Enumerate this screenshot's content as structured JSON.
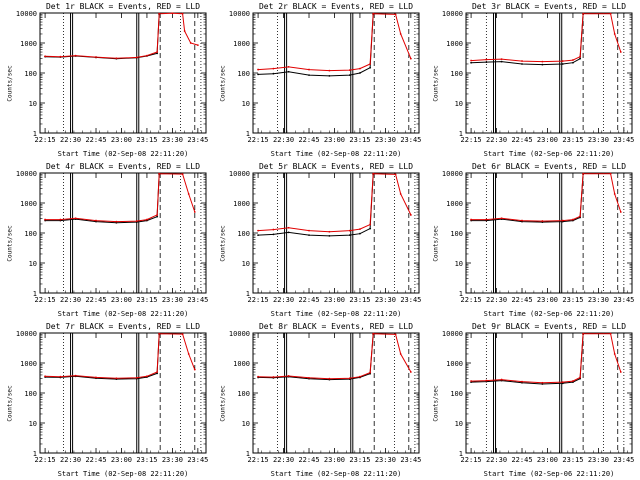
{
  "chart_data": [
    {
      "type": "line",
      "title": "Det 1r BLACK = Events, RED = LLD",
      "xlabel": "Start Time (02-Sep-08 22:11:20)",
      "ylabel": "Counts/sec",
      "x_tick_labels": [
        "22:15",
        "22:30",
        "22:45",
        "23:00",
        "23:15",
        "23:30",
        "23:45"
      ],
      "y_tick_labels": [
        "1",
        "10",
        "100",
        "1000",
        "10000"
      ],
      "y_scale": "log",
      "ylim": [
        1,
        10000
      ],
      "series": [
        {
          "color": "#000000",
          "points": [
            [
              22.25,
              350
            ],
            [
              22.4,
              340
            ],
            [
              22.55,
              370
            ],
            [
              22.75,
              330
            ],
            [
              22.95,
              300
            ],
            [
              23.15,
              320
            ],
            [
              23.25,
              370
            ],
            [
              23.35,
              450
            ],
            [
              23.37,
              9000
            ]
          ]
        },
        {
          "color": "#e00000",
          "points": [
            [
              22.25,
              360
            ],
            [
              22.4,
              350
            ],
            [
              22.55,
              380
            ],
            [
              22.75,
              340
            ],
            [
              22.95,
              310
            ],
            [
              23.15,
              330
            ],
            [
              23.25,
              380
            ],
            [
              23.35,
              500
            ],
            [
              23.37,
              9500
            ],
            [
              23.5,
              9800
            ],
            [
              23.6,
              9500
            ],
            [
              23.62,
              2500
            ],
            [
              23.68,
              1000
            ],
            [
              23.75,
              850
            ]
          ]
        }
      ]
    },
    {
      "type": "line",
      "title": "Det 2r BLACK = Events, RED = LLD",
      "xlabel": "Start Time (02-Sep-08 22:11:20)",
      "ylabel": "Counts/sec",
      "x_tick_labels": [
        "22:15",
        "22:30",
        "22:45",
        "23:00",
        "23:15",
        "23:30",
        "23:45"
      ],
      "y_tick_labels": [
        "1",
        "10",
        "100",
        "1000",
        "10000"
      ],
      "y_scale": "log",
      "ylim": [
        1,
        10000
      ],
      "series": [
        {
          "color": "#000000",
          "points": [
            [
              22.25,
              90
            ],
            [
              22.4,
              95
            ],
            [
              22.55,
              110
            ],
            [
              22.75,
              85
            ],
            [
              22.95,
              80
            ],
            [
              23.15,
              85
            ],
            [
              23.25,
              100
            ],
            [
              23.35,
              150
            ],
            [
              23.38,
              9000
            ]
          ]
        },
        {
          "color": "#e00000",
          "points": [
            [
              22.25,
              130
            ],
            [
              22.4,
              140
            ],
            [
              22.55,
              160
            ],
            [
              22.75,
              130
            ],
            [
              22.95,
              120
            ],
            [
              23.15,
              125
            ],
            [
              23.25,
              140
            ],
            [
              23.35,
              200
            ],
            [
              23.38,
              9500
            ],
            [
              23.6,
              9000
            ],
            [
              23.65,
              2000
            ],
            [
              23.75,
              300
            ]
          ]
        }
      ]
    },
    {
      "type": "line",
      "title": "Det 3r BLACK = Events, RED = LLD",
      "xlabel": "Start Time (02-Sep-06 22:11:20)",
      "ylabel": "Counts/sec",
      "x_tick_labels": [
        "22:15",
        "22:30",
        "22:45",
        "23:00",
        "23:15",
        "23:30",
        "23:45"
      ],
      "y_tick_labels": [
        "1",
        "10",
        "100",
        "1000",
        "10000"
      ],
      "y_scale": "log",
      "ylim": [
        1,
        10000
      ],
      "series": [
        {
          "color": "#000000",
          "points": [
            [
              22.25,
              220
            ],
            [
              22.4,
              230
            ],
            [
              22.55,
              240
            ],
            [
              22.75,
              200
            ],
            [
              22.95,
              190
            ],
            [
              23.15,
              200
            ],
            [
              23.25,
              220
            ],
            [
              23.32,
              300
            ],
            [
              23.35,
              9000
            ]
          ]
        },
        {
          "color": "#e00000",
          "points": [
            [
              22.25,
              260
            ],
            [
              22.4,
              280
            ],
            [
              22.55,
              290
            ],
            [
              22.75,
              250
            ],
            [
              22.95,
              240
            ],
            [
              23.15,
              250
            ],
            [
              23.25,
              270
            ],
            [
              23.32,
              350
            ],
            [
              23.35,
              9500
            ],
            [
              23.62,
              9500
            ],
            [
              23.66,
              2000
            ],
            [
              23.72,
              500
            ]
          ]
        }
      ]
    },
    {
      "type": "line",
      "title": "Det 4r BLACK = Events, RED = LLD",
      "xlabel": "Start Time (02-Sep-08 22:11:20)",
      "ylabel": "Counts/sec",
      "x_tick_labels": [
        "22:15",
        "22:30",
        "22:45",
        "23:00",
        "23:15",
        "23:30",
        "23:45"
      ],
      "y_tick_labels": [
        "1",
        "10",
        "100",
        "1000",
        "10000"
      ],
      "y_scale": "log",
      "ylim": [
        1,
        10000
      ],
      "series": [
        {
          "color": "#000000",
          "points": [
            [
              22.25,
              260
            ],
            [
              22.4,
              260
            ],
            [
              22.55,
              290
            ],
            [
              22.75,
              240
            ],
            [
              22.95,
              220
            ],
            [
              23.15,
              230
            ],
            [
              23.25,
              260
            ],
            [
              23.35,
              350
            ],
            [
              23.37,
              9000
            ]
          ]
        },
        {
          "color": "#e00000",
          "points": [
            [
              22.25,
              280
            ],
            [
              22.4,
              280
            ],
            [
              22.55,
              310
            ],
            [
              22.75,
              260
            ],
            [
              22.95,
              240
            ],
            [
              23.15,
              250
            ],
            [
              23.25,
              280
            ],
            [
              23.35,
              400
            ],
            [
              23.37,
              9500
            ],
            [
              23.6,
              9200
            ],
            [
              23.66,
              2000
            ],
            [
              23.72,
              500
            ]
          ]
        }
      ]
    },
    {
      "type": "line",
      "title": "Det 5r BLACK = Events, RED = LLD",
      "xlabel": "Start Time (02-Sep-08 22:11:20)",
      "ylabel": "Counts/sec",
      "x_tick_labels": [
        "22:15",
        "22:30",
        "22:45",
        "23:00",
        "23:15",
        "23:30",
        "23:45"
      ],
      "y_tick_labels": [
        "1",
        "10",
        "100",
        "1000",
        "10000"
      ],
      "y_scale": "log",
      "ylim": [
        1,
        10000
      ],
      "series": [
        {
          "color": "#000000",
          "points": [
            [
              22.25,
              85
            ],
            [
              22.4,
              90
            ],
            [
              22.55,
              105
            ],
            [
              22.75,
              85
            ],
            [
              22.95,
              80
            ],
            [
              23.15,
              85
            ],
            [
              23.25,
              95
            ],
            [
              23.35,
              140
            ],
            [
              23.38,
              9000
            ]
          ]
        },
        {
          "color": "#e00000",
          "points": [
            [
              22.25,
              120
            ],
            [
              22.4,
              130
            ],
            [
              22.55,
              150
            ],
            [
              22.75,
              120
            ],
            [
              22.95,
              110
            ],
            [
              23.15,
              120
            ],
            [
              23.25,
              135
            ],
            [
              23.35,
              190
            ],
            [
              23.38,
              9500
            ],
            [
              23.6,
              9000
            ],
            [
              23.65,
              2000
            ],
            [
              23.75,
              400
            ]
          ]
        }
      ]
    },
    {
      "type": "line",
      "title": "Det 6r BLACK = Events, RED = LLD",
      "xlabel": "Start Time (02-Sep-06 22:11:20)",
      "ylabel": "Counts/sec",
      "x_tick_labels": [
        "22:15",
        "22:30",
        "22:45",
        "23:00",
        "23:15",
        "23:30",
        "23:45"
      ],
      "y_tick_labels": [
        "1",
        "10",
        "100",
        "1000",
        "10000"
      ],
      "y_scale": "log",
      "ylim": [
        1,
        10000
      ],
      "series": [
        {
          "color": "#000000",
          "points": [
            [
              22.25,
              260
            ],
            [
              22.4,
              260
            ],
            [
              22.55,
              290
            ],
            [
              22.75,
              240
            ],
            [
              22.95,
              230
            ],
            [
              23.15,
              240
            ],
            [
              23.25,
              260
            ],
            [
              23.32,
              330
            ],
            [
              23.35,
              9000
            ]
          ]
        },
        {
          "color": "#e00000",
          "points": [
            [
              22.25,
              280
            ],
            [
              22.4,
              280
            ],
            [
              22.55,
              310
            ],
            [
              22.75,
              260
            ],
            [
              22.95,
              250
            ],
            [
              23.15,
              260
            ],
            [
              23.25,
              280
            ],
            [
              23.32,
              360
            ],
            [
              23.35,
              9500
            ],
            [
              23.62,
              9500
            ],
            [
              23.66,
              2000
            ],
            [
              23.72,
              500
            ]
          ]
        }
      ]
    },
    {
      "type": "line",
      "title": "Det 7r BLACK = Events, RED = LLD",
      "xlabel": "Start Time (02-Sep-08 22:11:20)",
      "ylabel": "Counts/sec",
      "x_tick_labels": [
        "22:15",
        "22:30",
        "22:45",
        "23:00",
        "23:15",
        "23:30",
        "23:45"
      ],
      "y_tick_labels": [
        "1",
        "10",
        "100",
        "1000",
        "10000"
      ],
      "y_scale": "log",
      "ylim": [
        1,
        10000
      ],
      "series": [
        {
          "color": "#000000",
          "points": [
            [
              22.25,
              340
            ],
            [
              22.4,
              330
            ],
            [
              22.55,
              360
            ],
            [
              22.75,
              310
            ],
            [
              22.95,
              290
            ],
            [
              23.15,
              300
            ],
            [
              23.25,
              340
            ],
            [
              23.35,
              450
            ],
            [
              23.37,
              9000
            ]
          ]
        },
        {
          "color": "#e00000",
          "points": [
            [
              22.25,
              360
            ],
            [
              22.4,
              350
            ],
            [
              22.55,
              380
            ],
            [
              22.75,
              330
            ],
            [
              22.95,
              310
            ],
            [
              23.15,
              320
            ],
            [
              23.25,
              360
            ],
            [
              23.35,
              500
            ],
            [
              23.37,
              9500
            ],
            [
              23.6,
              9200
            ],
            [
              23.66,
              2000
            ],
            [
              23.72,
              600
            ]
          ]
        }
      ]
    },
    {
      "type": "line",
      "title": "Det 8r BLACK = Events, RED = LLD",
      "xlabel": "Start Time (02-Sep-08 22:11:20)",
      "ylabel": "Counts/sec",
      "x_tick_labels": [
        "22:15",
        "22:30",
        "22:45",
        "23:00",
        "23:15",
        "23:30",
        "23:45"
      ],
      "y_tick_labels": [
        "1",
        "10",
        "100",
        "1000",
        "10000"
      ],
      "y_scale": "log",
      "ylim": [
        1,
        10000
      ],
      "series": [
        {
          "color": "#000000",
          "points": [
            [
              22.25,
              330
            ],
            [
              22.4,
              320
            ],
            [
              22.55,
              350
            ],
            [
              22.75,
              300
            ],
            [
              22.95,
              280
            ],
            [
              23.15,
              290
            ],
            [
              23.25,
              330
            ],
            [
              23.35,
              440
            ],
            [
              23.38,
              9000
            ]
          ]
        },
        {
          "color": "#e00000",
          "points": [
            [
              22.25,
              350
            ],
            [
              22.4,
              340
            ],
            [
              22.55,
              370
            ],
            [
              22.75,
              320
            ],
            [
              22.95,
              300
            ],
            [
              23.15,
              310
            ],
            [
              23.25,
              350
            ],
            [
              23.35,
              480
            ],
            [
              23.38,
              9500
            ],
            [
              23.6,
              9000
            ],
            [
              23.65,
              2000
            ],
            [
              23.75,
              500
            ]
          ]
        }
      ]
    },
    {
      "type": "line",
      "title": "Det 9r BLACK = Events, RED = LLD",
      "xlabel": "Start Time (02-Sep-06 22:11:20)",
      "ylabel": "Counts/sec",
      "x_tick_labels": [
        "22:15",
        "22:30",
        "22:45",
        "23:00",
        "23:15",
        "23:30",
        "23:45"
      ],
      "y_tick_labels": [
        "1",
        "10",
        "100",
        "1000",
        "10000"
      ],
      "y_scale": "log",
      "ylim": [
        1,
        10000
      ],
      "series": [
        {
          "color": "#000000",
          "points": [
            [
              22.25,
              230
            ],
            [
              22.4,
              240
            ],
            [
              22.55,
              260
            ],
            [
              22.75,
              220
            ],
            [
              22.95,
              200
            ],
            [
              23.15,
              210
            ],
            [
              23.25,
              230
            ],
            [
              23.32,
              300
            ],
            [
              23.35,
              9000
            ]
          ]
        },
        {
          "color": "#e00000",
          "points": [
            [
              22.25,
              250
            ],
            [
              22.4,
              260
            ],
            [
              22.55,
              280
            ],
            [
              22.75,
              240
            ],
            [
              22.95,
              220
            ],
            [
              23.15,
              230
            ],
            [
              23.25,
              250
            ],
            [
              23.32,
              330
            ],
            [
              23.35,
              9500
            ],
            [
              23.62,
              9500
            ],
            [
              23.66,
              2000
            ],
            [
              23.72,
              500
            ]
          ]
        }
      ]
    }
  ]
}
